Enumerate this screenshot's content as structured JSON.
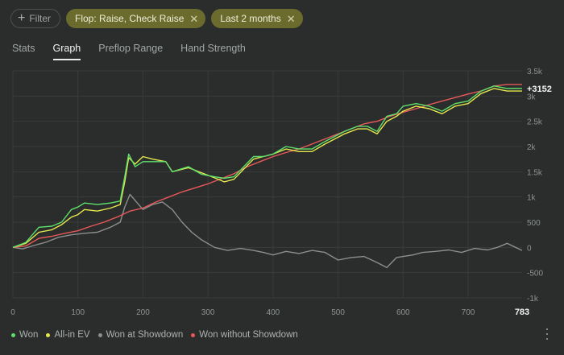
{
  "filters": {
    "add_label": "Filter",
    "chips": [
      "Flop: Raise, Check Raise",
      "Last 2 months"
    ]
  },
  "tabs": [
    "Stats",
    "Graph",
    "Preflop Range",
    "Hand Strength"
  ],
  "active_tab": "Graph",
  "chart_data": {
    "type": "line",
    "x_ticks": [
      "0",
      "100",
      "200",
      "300",
      "400",
      "500",
      "600",
      "700"
    ],
    "x_end_label": "783",
    "y_ticks": [
      "3.5k",
      "3k",
      "2.5k",
      "2k",
      "1.5k",
      "1k",
      "500",
      "0",
      "-500",
      "-1k"
    ],
    "xlim": [
      0,
      783
    ],
    "ylim": [
      -1000,
      3500
    ],
    "final_value_label": "+3152",
    "grid": true,
    "legend_position": "bottom-left",
    "series": [
      {
        "name": "Won",
        "color": "#5fe06b",
        "points": [
          [
            0,
            0
          ],
          [
            20,
            100
          ],
          [
            40,
            400
          ],
          [
            60,
            420
          ],
          [
            75,
            500
          ],
          [
            90,
            750
          ],
          [
            100,
            800
          ],
          [
            110,
            880
          ],
          [
            130,
            850
          ],
          [
            150,
            880
          ],
          [
            165,
            920
          ],
          [
            172,
            1400
          ],
          [
            178,
            1850
          ],
          [
            188,
            1600
          ],
          [
            200,
            1700
          ],
          [
            215,
            1700
          ],
          [
            235,
            1700
          ],
          [
            245,
            1500
          ],
          [
            270,
            1600
          ],
          [
            290,
            1450
          ],
          [
            310,
            1400
          ],
          [
            325,
            1370
          ],
          [
            340,
            1400
          ],
          [
            355,
            1600
          ],
          [
            370,
            1800
          ],
          [
            385,
            1800
          ],
          [
            400,
            1850
          ],
          [
            420,
            2000
          ],
          [
            440,
            1950
          ],
          [
            460,
            1950
          ],
          [
            480,
            2100
          ],
          [
            495,
            2200
          ],
          [
            510,
            2300
          ],
          [
            530,
            2400
          ],
          [
            545,
            2400
          ],
          [
            560,
            2300
          ],
          [
            575,
            2600
          ],
          [
            590,
            2650
          ],
          [
            600,
            2800
          ],
          [
            620,
            2850
          ],
          [
            640,
            2800
          ],
          [
            660,
            2700
          ],
          [
            680,
            2850
          ],
          [
            700,
            2900
          ],
          [
            720,
            3100
          ],
          [
            740,
            3200
          ],
          [
            760,
            3150
          ],
          [
            783,
            3152
          ]
        ]
      },
      {
        "name": "All-in EV",
        "color": "#e5e84d",
        "points": [
          [
            0,
            0
          ],
          [
            20,
            80
          ],
          [
            40,
            300
          ],
          [
            60,
            350
          ],
          [
            75,
            450
          ],
          [
            90,
            600
          ],
          [
            100,
            650
          ],
          [
            110,
            750
          ],
          [
            130,
            720
          ],
          [
            150,
            780
          ],
          [
            165,
            850
          ],
          [
            172,
            1300
          ],
          [
            178,
            1780
          ],
          [
            188,
            1650
          ],
          [
            200,
            1800
          ],
          [
            215,
            1750
          ],
          [
            235,
            1700
          ],
          [
            245,
            1500
          ],
          [
            270,
            1580
          ],
          [
            290,
            1480
          ],
          [
            310,
            1380
          ],
          [
            325,
            1300
          ],
          [
            340,
            1350
          ],
          [
            355,
            1550
          ],
          [
            370,
            1750
          ],
          [
            385,
            1800
          ],
          [
            400,
            1850
          ],
          [
            420,
            1950
          ],
          [
            440,
            1900
          ],
          [
            460,
            1900
          ],
          [
            480,
            2050
          ],
          [
            495,
            2150
          ],
          [
            510,
            2250
          ],
          [
            530,
            2350
          ],
          [
            545,
            2350
          ],
          [
            560,
            2250
          ],
          [
            575,
            2500
          ],
          [
            590,
            2600
          ],
          [
            600,
            2700
          ],
          [
            620,
            2800
          ],
          [
            640,
            2750
          ],
          [
            660,
            2650
          ],
          [
            680,
            2800
          ],
          [
            700,
            2850
          ],
          [
            720,
            3050
          ],
          [
            740,
            3150
          ],
          [
            760,
            3100
          ],
          [
            783,
            3100
          ]
        ]
      },
      {
        "name": "Won at Showdown",
        "color": "#8b8e8c",
        "points": [
          [
            0,
            0
          ],
          [
            15,
            -30
          ],
          [
            30,
            30
          ],
          [
            50,
            100
          ],
          [
            70,
            200
          ],
          [
            90,
            250
          ],
          [
            110,
            280
          ],
          [
            130,
            300
          ],
          [
            150,
            400
          ],
          [
            165,
            500
          ],
          [
            172,
            800
          ],
          [
            180,
            1050
          ],
          [
            190,
            900
          ],
          [
            200,
            750
          ],
          [
            215,
            850
          ],
          [
            230,
            900
          ],
          [
            245,
            750
          ],
          [
            260,
            500
          ],
          [
            275,
            300
          ],
          [
            290,
            150
          ],
          [
            310,
            0
          ],
          [
            330,
            -60
          ],
          [
            350,
            -20
          ],
          [
            370,
            -60
          ],
          [
            385,
            -100
          ],
          [
            400,
            -150
          ],
          [
            420,
            -80
          ],
          [
            440,
            -120
          ],
          [
            460,
            -60
          ],
          [
            480,
            -100
          ],
          [
            500,
            -250
          ],
          [
            520,
            -200
          ],
          [
            540,
            -180
          ],
          [
            560,
            -300
          ],
          [
            575,
            -400
          ],
          [
            590,
            -200
          ],
          [
            600,
            -180
          ],
          [
            615,
            -150
          ],
          [
            630,
            -100
          ],
          [
            650,
            -80
          ],
          [
            670,
            -50
          ],
          [
            690,
            -100
          ],
          [
            710,
            -20
          ],
          [
            730,
            -50
          ],
          [
            745,
            0
          ],
          [
            760,
            80
          ],
          [
            783,
            -60
          ]
        ]
      },
      {
        "name": "Won without Showdown",
        "color": "#e8585a",
        "points": [
          [
            0,
            0
          ],
          [
            20,
            30
          ],
          [
            40,
            180
          ],
          [
            60,
            220
          ],
          [
            80,
            280
          ],
          [
            100,
            330
          ],
          [
            120,
            420
          ],
          [
            140,
            500
          ],
          [
            160,
            600
          ],
          [
            180,
            720
          ],
          [
            200,
            780
          ],
          [
            220,
            900
          ],
          [
            240,
            1000
          ],
          [
            260,
            1100
          ],
          [
            280,
            1180
          ],
          [
            300,
            1260
          ],
          [
            320,
            1360
          ],
          [
            340,
            1460
          ],
          [
            360,
            1600
          ],
          [
            380,
            1700
          ],
          [
            400,
            1800
          ],
          [
            420,
            1880
          ],
          [
            440,
            1950
          ],
          [
            460,
            2050
          ],
          [
            480,
            2150
          ],
          [
            500,
            2250
          ],
          [
            520,
            2350
          ],
          [
            540,
            2450
          ],
          [
            560,
            2500
          ],
          [
            580,
            2600
          ],
          [
            600,
            2680
          ],
          [
            620,
            2750
          ],
          [
            640,
            2830
          ],
          [
            660,
            2900
          ],
          [
            680,
            2970
          ],
          [
            700,
            3040
          ],
          [
            720,
            3100
          ],
          [
            740,
            3200
          ],
          [
            760,
            3230
          ],
          [
            783,
            3230
          ]
        ]
      }
    ]
  }
}
